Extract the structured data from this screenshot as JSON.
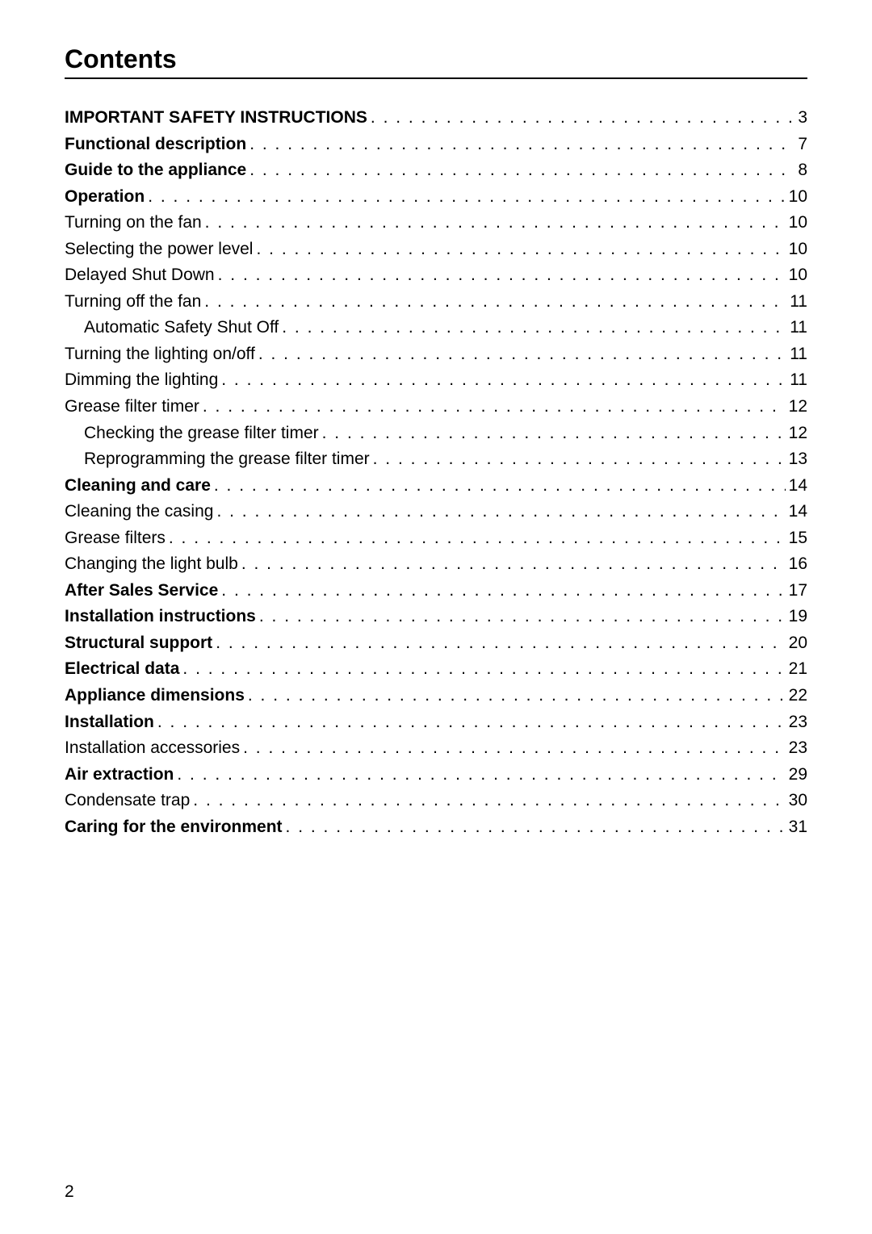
{
  "page": {
    "title": "Contents",
    "page_number": "2"
  },
  "toc": {
    "entries": [
      {
        "label": "IMPORTANT SAFETY INSTRUCTIONS",
        "page": "3",
        "bold": true,
        "indent": 0
      },
      {
        "label": "Functional description",
        "page": "7",
        "bold": true,
        "indent": 0
      },
      {
        "label": "Guide to the appliance",
        "page": "8",
        "bold": true,
        "indent": 0
      },
      {
        "label": "Operation",
        "page": "10",
        "bold": true,
        "indent": 0
      },
      {
        "label": "Turning on the fan",
        "page": "10",
        "bold": false,
        "indent": 0
      },
      {
        "label": "Selecting the power level",
        "page": "10",
        "bold": false,
        "indent": 0
      },
      {
        "label": "Delayed Shut Down",
        "page": "10",
        "bold": false,
        "indent": 0
      },
      {
        "label": "Turning off the fan",
        "page": "11",
        "bold": false,
        "indent": 0
      },
      {
        "label": "Automatic Safety Shut Off",
        "page": "11",
        "bold": false,
        "indent": 1
      },
      {
        "label": "Turning the lighting on/off",
        "page": "11",
        "bold": false,
        "indent": 0
      },
      {
        "label": "Dimming the lighting",
        "page": "11",
        "bold": false,
        "indent": 0
      },
      {
        "label": "Grease filter timer",
        "page": "12",
        "bold": false,
        "indent": 0
      },
      {
        "label": "Checking the grease filter timer",
        "page": "12",
        "bold": false,
        "indent": 1
      },
      {
        "label": "Reprogramming the grease filter timer",
        "page": "13",
        "bold": false,
        "indent": 1
      },
      {
        "label": "Cleaning and care",
        "page": "14",
        "bold": true,
        "indent": 0
      },
      {
        "label": "Cleaning the casing",
        "page": "14",
        "bold": false,
        "indent": 0
      },
      {
        "label": "Grease filters",
        "page": "15",
        "bold": false,
        "indent": 0
      },
      {
        "label": "Changing the light bulb",
        "page": "16",
        "bold": false,
        "indent": 0
      },
      {
        "label": "After Sales Service",
        "page": "17",
        "bold": true,
        "indent": 0
      },
      {
        "label": "Installation instructions",
        "page": "19",
        "bold": true,
        "indent": 0
      },
      {
        "label": "Structural support",
        "page": "20",
        "bold": true,
        "indent": 0
      },
      {
        "label": "Electrical data",
        "page": "21",
        "bold": true,
        "indent": 0
      },
      {
        "label": "Appliance dimensions",
        "page": "22",
        "bold": true,
        "indent": 0
      },
      {
        "label": "Installation",
        "page": "23",
        "bold": true,
        "indent": 0
      },
      {
        "label": "Installation accessories",
        "page": "23",
        "bold": false,
        "indent": 0
      },
      {
        "label": "Air extraction",
        "page": "29",
        "bold": true,
        "indent": 0
      },
      {
        "label": "Condensate trap",
        "page": "30",
        "bold": false,
        "indent": 0
      },
      {
        "label": "Caring for the environment",
        "page": "31",
        "bold": true,
        "indent": 0
      }
    ]
  }
}
